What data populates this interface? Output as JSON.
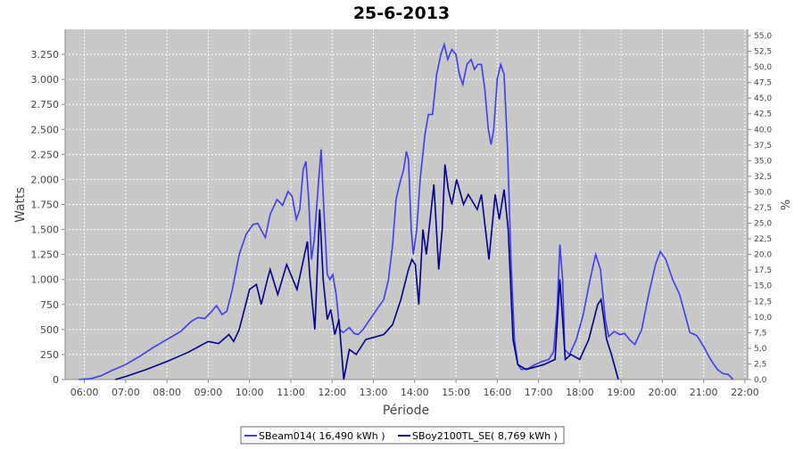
{
  "chart_data": {
    "type": "line",
    "title": "25-6-2013",
    "x_label": "Période",
    "y_label": "Watts",
    "y2_label": "%",
    "xlim": [
      332,
      1324
    ],
    "ylim": [
      0,
      3500
    ],
    "y2lim": [
      0,
      56
    ],
    "grid": true,
    "background": "#c8c8c8",
    "legend": "bottom",
    "xticks": [
      {
        "value": 360,
        "label": "06:00"
      },
      {
        "value": 420,
        "label": "07:00"
      },
      {
        "value": 480,
        "label": "08:00"
      },
      {
        "value": 540,
        "label": "09:00"
      },
      {
        "value": 600,
        "label": "10:00"
      },
      {
        "value": 660,
        "label": "11:00"
      },
      {
        "value": 720,
        "label": "12:00"
      },
      {
        "value": 780,
        "label": "13:00"
      },
      {
        "value": 840,
        "label": "14:00"
      },
      {
        "value": 900,
        "label": "15:00"
      },
      {
        "value": 960,
        "label": "16:00"
      },
      {
        "value": 1020,
        "label": "17:00"
      },
      {
        "value": 1080,
        "label": "18:00"
      },
      {
        "value": 1140,
        "label": "19:00"
      },
      {
        "value": 1200,
        "label": "20:00"
      },
      {
        "value": 1260,
        "label": "21:00"
      },
      {
        "value": 1320,
        "label": "22:00"
      }
    ],
    "yticks": [
      0,
      250,
      500,
      750,
      {
        "value": 1000,
        "label": "1.000"
      },
      {
        "value": 1250,
        "label": "1.250"
      },
      {
        "value": 1500,
        "label": "1.500"
      },
      {
        "value": 1750,
        "label": "1.750"
      },
      {
        "value": 2000,
        "label": "2.000"
      },
      {
        "value": 2250,
        "label": "2.250"
      },
      {
        "value": 2500,
        "label": "2.500"
      },
      {
        "value": 2750,
        "label": "2.750"
      },
      {
        "value": 3000,
        "label": "3.000"
      },
      {
        "value": 3250,
        "label": "3.250"
      }
    ],
    "y2ticks": [
      {
        "value": 0,
        "label": "0,0"
      },
      {
        "value": 2.5,
        "label": "2,5"
      },
      {
        "value": 5,
        "label": "5,0"
      },
      {
        "value": 7.5,
        "label": "7,5"
      },
      {
        "value": 10,
        "label": "10,0"
      },
      {
        "value": 12.5,
        "label": "12,5"
      },
      {
        "value": 15,
        "label": "15,0"
      },
      {
        "value": 17.5,
        "label": "17,5"
      },
      {
        "value": 20,
        "label": "20,0"
      },
      {
        "value": 22.5,
        "label": "22,5"
      },
      {
        "value": 25,
        "label": "25,0"
      },
      {
        "value": 27.5,
        "label": "27,5"
      },
      {
        "value": 30,
        "label": "30,0"
      },
      {
        "value": 32.5,
        "label": "32,5"
      },
      {
        "value": 35,
        "label": "35,0"
      },
      {
        "value": 37.5,
        "label": "37,5"
      },
      {
        "value": 40,
        "label": "40,0"
      },
      {
        "value": 42.5,
        "label": "42,5"
      },
      {
        "value": 45,
        "label": "45,0"
      },
      {
        "value": 47.5,
        "label": "47,5"
      },
      {
        "value": 50,
        "label": "50,0"
      },
      {
        "value": 52.5,
        "label": "52,5"
      },
      {
        "value": 55,
        "label": "55,0"
      }
    ],
    "series": [
      {
        "name": "SBeam014( 16,490 kWh )",
        "color": "#3c3cf0",
        "x": [
          352,
          370,
          385,
          400,
          420,
          440,
          460,
          480,
          500,
          515,
          525,
          535,
          545,
          552,
          560,
          567,
          575,
          585,
          595,
          605,
          612,
          618,
          623,
          630,
          640,
          648,
          656,
          662,
          668,
          673,
          678,
          682,
          686,
          690,
          694,
          700,
          704,
          708,
          713,
          717,
          721,
          726,
          731,
          736,
          745,
          752,
          758,
          765,
          775,
          785,
          795,
          802,
          808,
          813,
          818,
          824,
          828,
          831,
          835,
          838,
          843,
          848,
          855,
          860,
          866,
          872,
          878,
          883,
          888,
          894,
          900,
          905,
          910,
          916,
          922,
          927,
          932,
          937,
          942,
          947,
          951,
          955,
          960,
          965,
          970,
          975,
          980,
          985,
          990,
          995,
          1005,
          1015,
          1025,
          1035,
          1042,
          1047,
          1051,
          1055,
          1058,
          1065,
          1075,
          1085,
          1095,
          1103,
          1110,
          1117,
          1122,
          1130,
          1138,
          1145,
          1152,
          1160,
          1170,
          1180,
          1190,
          1197,
          1205,
          1215,
          1225,
          1233,
          1240,
          1250,
          1260,
          1270,
          1280,
          1288,
          1296,
          1303
        ],
        "values": [
          0,
          10,
          40,
          90,
          150,
          230,
          320,
          400,
          480,
          580,
          620,
          610,
          680,
          740,
          650,
          680,
          900,
          1250,
          1450,
          1550,
          1560,
          1480,
          1420,
          1650,
          1800,
          1740,
          1880,
          1830,
          1600,
          1700,
          2100,
          2180,
          1800,
          1200,
          1400,
          1950,
          2300,
          1700,
          1050,
          1000,
          1050,
          850,
          500,
          470,
          520,
          460,
          450,
          500,
          600,
          700,
          800,
          1000,
          1350,
          1800,
          1950,
          2100,
          2280,
          2200,
          1500,
          1250,
          1500,
          2000,
          2450,
          2650,
          2650,
          3050,
          3250,
          3350,
          3200,
          3300,
          3250,
          3050,
          2950,
          3150,
          3200,
          3100,
          3150,
          3150,
          2900,
          2500,
          2350,
          2500,
          3000,
          3150,
          3050,
          2300,
          1200,
          400,
          150,
          100,
          110,
          150,
          180,
          200,
          280,
          700,
          1350,
          1000,
          300,
          250,
          400,
          650,
          1000,
          1250,
          1100,
          600,
          430,
          480,
          450,
          460,
          400,
          350,
          500,
          850,
          1150,
          1280,
          1200,
          1000,
          850,
          650,
          470,
          440,
          330,
          200,
          100,
          60,
          50,
          0
        ]
      },
      {
        "name": "SBoy2100TL_SE( 8,769 kWh )",
        "color": "#00008c",
        "x": [
          405,
          420,
          450,
          480,
          510,
          540,
          555,
          570,
          577,
          585,
          600,
          610,
          617,
          626,
          630,
          641,
          654,
          669,
          684,
          688,
          695,
          702,
          707,
          713,
          718,
          724,
          730,
          737,
          745,
          755,
          769,
          795,
          808,
          820,
          831,
          836,
          841,
          846,
          852,
          857,
          868,
          875,
          880,
          884,
          889,
          894,
          901,
          911,
          918,
          931,
          937,
          948,
          957,
          963,
          970,
          976,
          983,
          990,
          1002,
          1028,
          1044,
          1051,
          1059,
          1067,
          1080,
          1093,
          1106,
          1111,
          1119,
          1126,
          1136
        ],
        "values": [
          0,
          30,
          100,
          180,
          270,
          380,
          360,
          450,
          380,
          500,
          900,
          950,
          750,
          1000,
          1100,
          850,
          1150,
          900,
          1380,
          1000,
          500,
          1700,
          1000,
          600,
          700,
          450,
          600,
          0,
          300,
          250,
          400,
          450,
          550,
          800,
          1100,
          1200,
          1150,
          750,
          1500,
          1250,
          1950,
          1100,
          1500,
          2150,
          1900,
          1750,
          2000,
          1750,
          1850,
          1700,
          1850,
          1200,
          1850,
          1600,
          1900,
          1500,
          400,
          150,
          100,
          150,
          200,
          1000,
          200,
          250,
          200,
          400,
          750,
          800,
          400,
          250,
          0
        ]
      }
    ]
  }
}
